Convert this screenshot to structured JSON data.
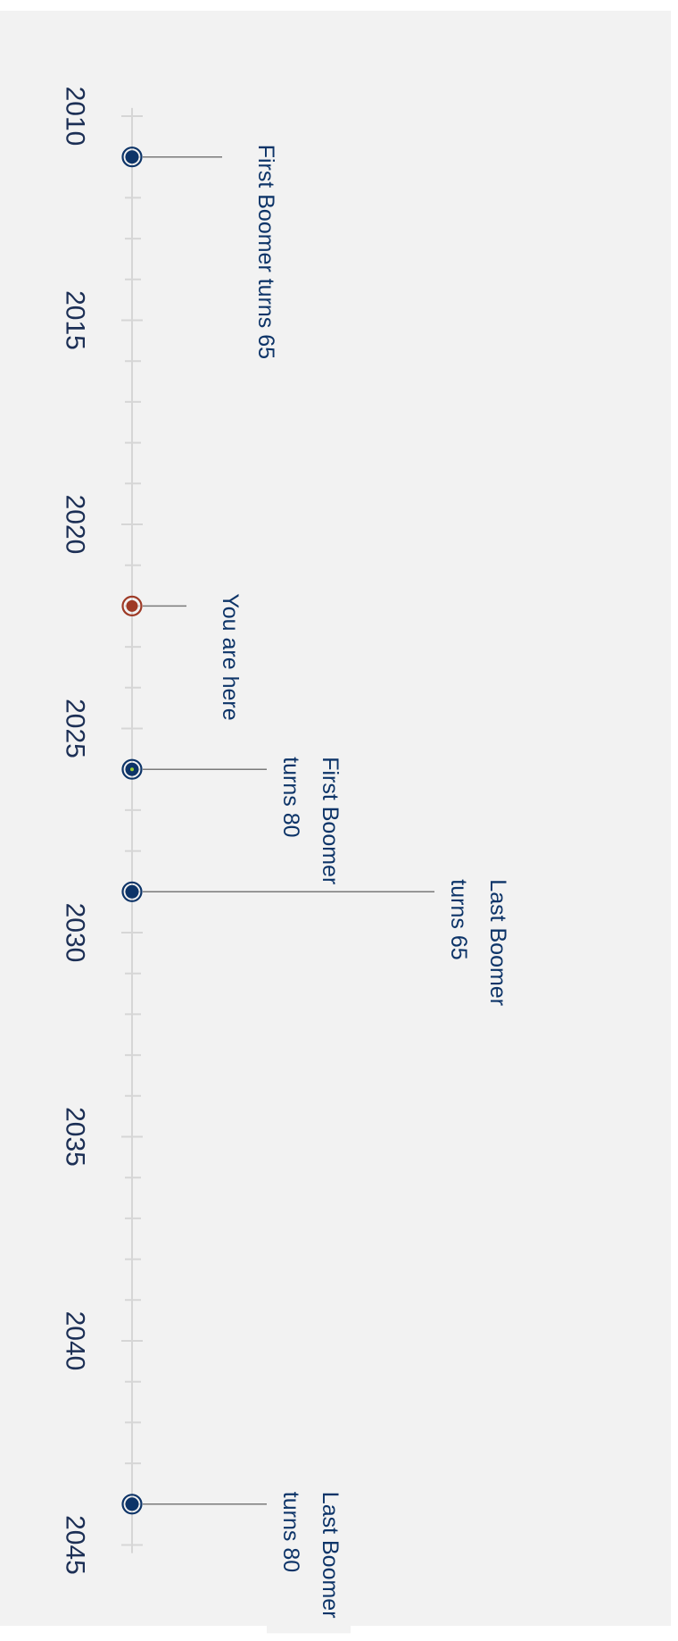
{
  "chart_data": {
    "type": "timeline",
    "orientation": "vertical",
    "axis": {
      "min": 2009,
      "max": 2046,
      "major_ticks": [
        2010,
        2015,
        2020,
        2025,
        2030,
        2035,
        2040,
        2045
      ],
      "minor_step": 1,
      "tick_labels": [
        "2010",
        "2015",
        "2020",
        "2025",
        "2030",
        "2035",
        "2040",
        "2045"
      ]
    },
    "events": [
      {
        "year": 2011,
        "label": [
          "First Boomer turns 65"
        ],
        "marker": "boomer"
      },
      {
        "year": 2022,
        "label": [
          "You are here"
        ],
        "marker": "current"
      },
      {
        "year": 2026,
        "label": [
          "First Boomer",
          "turns 80"
        ],
        "marker": "boomer-accent"
      },
      {
        "year": 2029,
        "label": [
          "Last Boomer",
          "turns 65"
        ],
        "marker": "boomer"
      },
      {
        "year": 2044,
        "label": [
          "Last Boomer",
          "turns 80"
        ],
        "marker": "boomer"
      }
    ],
    "colors": {
      "marker_fill": "#0d3468",
      "current_marker": "#9e3a26",
      "accent_dot": "#9acd32",
      "axis": "#d6d6d6",
      "leader_line": "#7a7a7a",
      "label_box": "#f2f2f2",
      "text": "#0d3468"
    }
  }
}
